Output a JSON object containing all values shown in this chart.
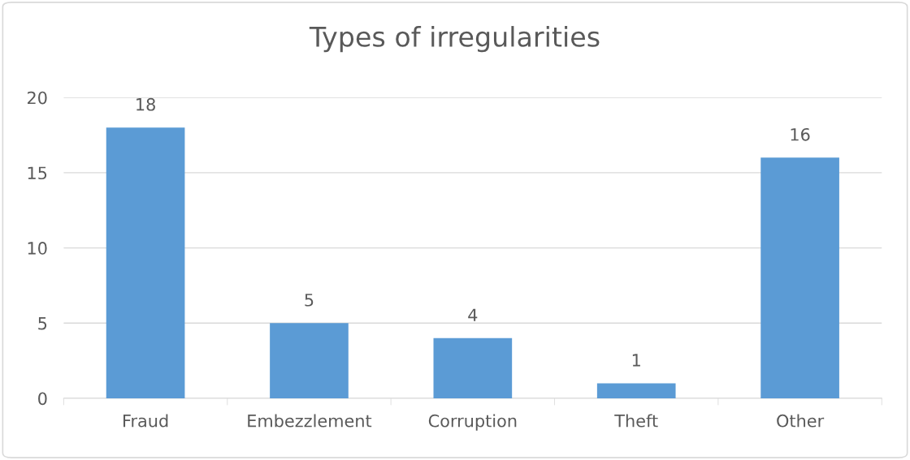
{
  "chart_data": {
    "type": "bar",
    "title": "Types of irregularities",
    "categories": [
      "Fraud",
      "Embezzlement",
      "Corruption",
      "Theft",
      "Other"
    ],
    "values": [
      18,
      5,
      4,
      1,
      16
    ],
    "color": "#5b9bd5",
    "ylim": [
      0,
      20
    ],
    "yticks": [
      0,
      5,
      10,
      15,
      20
    ],
    "grid": "y",
    "data_labels": true
  }
}
